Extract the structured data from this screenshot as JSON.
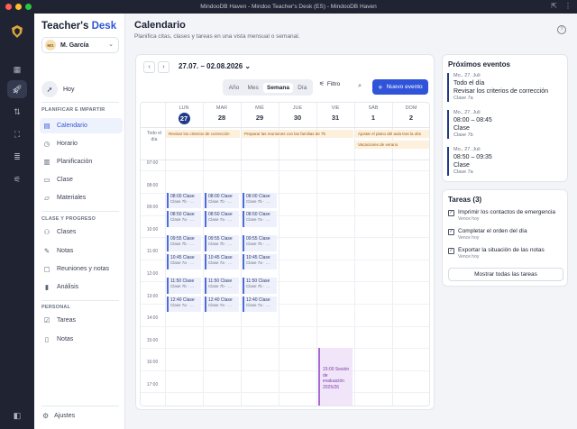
{
  "window": {
    "title": "MindooDB Haven - Mindoo Teacher's Desk (ES) - MindooDB Haven",
    "colors": {
      "close": "#ff5f57",
      "minimize": "#febc2e",
      "maximize": "#28c840"
    }
  },
  "rail": {
    "icons": [
      "dashboard-icon",
      "rocket-icon",
      "arrows-icon",
      "scan-icon",
      "database-icon",
      "sliders-icon",
      "sidebar-toggle-icon"
    ]
  },
  "sidebar": {
    "brand_main": "Teacher's",
    "brand_accent": "Desk",
    "user": {
      "initials": "MG",
      "name": "M. García"
    },
    "hoy": "Hoy",
    "sections": {
      "plan": "PLANIFICAR E IMPARTIR",
      "clase": "CLASE Y PROGRESO",
      "personal": "PERSONAL"
    },
    "plan_items": [
      "Calendario",
      "Horario",
      "Planificación",
      "Clase",
      "Materiales"
    ],
    "clase_items": [
      "Clases",
      "Notas",
      "Reuniones y notas",
      "Análisis"
    ],
    "personal_items": [
      "Tareas",
      "Notas"
    ],
    "ajustes": "Ajustes"
  },
  "header": {
    "title": "Calendario",
    "subtitle": "Planifica citas, clases y tareas en una vista mensual o semanal."
  },
  "calendar": {
    "range": "27.07. – 02.08.2026",
    "views": [
      "Año",
      "Mes",
      "Semana",
      "Día"
    ],
    "active_view": "Semana",
    "filter": "Filtro",
    "new_event": "Nuevo evento",
    "allday_label": "Todo el día",
    "days": [
      {
        "name": "LUN",
        "num": "27",
        "today": true
      },
      {
        "name": "MAR",
        "num": "28"
      },
      {
        "name": "MIÉ",
        "num": "29"
      },
      {
        "name": "JUE",
        "num": "30"
      },
      {
        "name": "VIE",
        "num": "31"
      },
      {
        "name": "SÁB",
        "num": "1"
      },
      {
        "name": "DOM",
        "num": "2"
      }
    ],
    "hours": [
      "07:00",
      "08:00",
      "09:00",
      "10:00",
      "11:00",
      "12:00",
      "13:00",
      "14:00",
      "15:00",
      "16:00",
      "17:00"
    ],
    "allday_events": [
      {
        "text": "Revisar los criterios de corrección",
        "row": 0,
        "start": 0,
        "span": 2
      },
      {
        "text": "Preparar las reuniones con las familias de 7b",
        "row": 0,
        "start": 2,
        "span": 3
      },
      {
        "text": "Ajustar el plano del aula tras la obs",
        "row": 0,
        "start": 5,
        "span": 2
      },
      {
        "text": "Vacaciones de verano",
        "row": 1,
        "start": 5,
        "span": 2
      }
    ],
    "class_events": [
      {
        "day": 0,
        "time": "08:00",
        "title": "Clase",
        "class": "Clase 7b"
      },
      {
        "day": 0,
        "time": "08:50",
        "title": "Clase",
        "class": "Clase 7a"
      },
      {
        "day": 0,
        "time": "09:55",
        "title": "Clase",
        "class": "Clase 7b"
      },
      {
        "day": 0,
        "time": "10:45",
        "title": "Clase",
        "class": "Clase 7a"
      },
      {
        "day": 0,
        "time": "11:50",
        "title": "Clase",
        "class": "Clase 7b"
      },
      {
        "day": 0,
        "time": "12:40",
        "title": "Clase",
        "class": "Clase 7a"
      },
      {
        "day": 1,
        "time": "08:00",
        "title": "Clase",
        "class": "Clase 7b"
      },
      {
        "day": 1,
        "time": "08:50",
        "title": "Clase",
        "class": "Clase 7a"
      },
      {
        "day": 1,
        "time": "09:55",
        "title": "Clase",
        "class": "Clase 7b"
      },
      {
        "day": 1,
        "time": "10:45",
        "title": "Clase",
        "class": "Clase 7a"
      },
      {
        "day": 1,
        "time": "11:50",
        "title": "Clase",
        "class": "Clase 7b"
      },
      {
        "day": 1,
        "time": "12:40",
        "title": "Clase",
        "class": "Clase 7a"
      },
      {
        "day": 2,
        "time": "08:00",
        "title": "Clase",
        "class": "Clase 7b"
      },
      {
        "day": 2,
        "time": "08:50",
        "title": "Clase",
        "class": "Clase 7a"
      },
      {
        "day": 2,
        "time": "09:55",
        "title": "Clase",
        "class": "Clase 7b"
      },
      {
        "day": 2,
        "time": "10:45",
        "title": "Clase",
        "class": "Clase 7a"
      },
      {
        "day": 2,
        "time": "11:50",
        "title": "Clase",
        "class": "Clase 7b"
      },
      {
        "day": 2,
        "time": "12:40",
        "title": "Clase",
        "class": "Clase 7a"
      }
    ],
    "special_event": {
      "day": 4,
      "time": "15:00",
      "text": "15:00 Sesión de evaluación 2025/26",
      "end": "18:00"
    }
  },
  "upcoming": {
    "title": "Próximos eventos",
    "events": [
      {
        "date": "Mo., 27. Juli",
        "main": "Todo el día",
        "main2": "Revisar los criterios de corrección",
        "sub": "Clase 7a"
      },
      {
        "date": "Mo., 27. Juli",
        "main": "08:00 – 08:45",
        "main2": "Clase",
        "sub": "Clase 7b"
      },
      {
        "date": "Mo., 27. Juli",
        "main": "08:50 – 09:35",
        "main2": "Clase",
        "sub": "Clase 7a"
      }
    ]
  },
  "tasks": {
    "title": "Tareas (3)",
    "items": [
      {
        "text": "Imprimir los contactos de emergencia",
        "due": "Vence hoy"
      },
      {
        "text": "Completar el orden del día",
        "due": "Vence hoy"
      },
      {
        "text": "Exportar la situación de las notas",
        "due": "Vence hoy"
      }
    ],
    "show_all": "Mostrar todas las tareas"
  }
}
